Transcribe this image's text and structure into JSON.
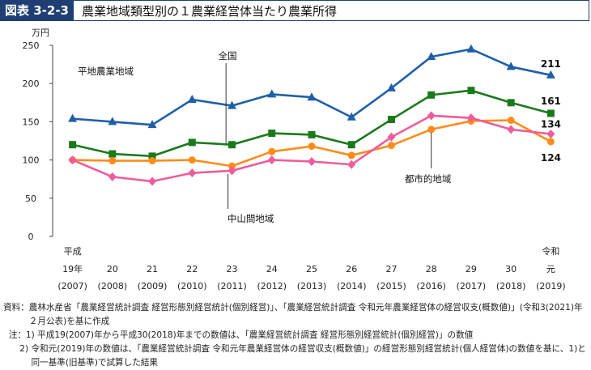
{
  "header": {
    "figure_label": "図表 3-2-3",
    "title": "農業地域類型別の１農業経営体当たり農業所得"
  },
  "chart_data": {
    "type": "line",
    "y_unit": "万円",
    "ylim": [
      0,
      250
    ],
    "yticks": [
      0,
      50,
      100,
      150,
      200,
      250
    ],
    "grid": false,
    "legend": "none",
    "categories": [
      {
        "era": "平成",
        "year": "19年",
        "western": "(2007)"
      },
      {
        "era": "",
        "year": "20",
        "western": "(2008)"
      },
      {
        "era": "",
        "year": "21",
        "western": "(2009)"
      },
      {
        "era": "",
        "year": "22",
        "western": "(2010)"
      },
      {
        "era": "",
        "year": "23",
        "western": "(2011)"
      },
      {
        "era": "",
        "year": "24",
        "western": "(2012)"
      },
      {
        "era": "",
        "year": "25",
        "western": "(2013)"
      },
      {
        "era": "",
        "year": "26",
        "western": "(2014)"
      },
      {
        "era": "",
        "year": "27",
        "western": "(2015)"
      },
      {
        "era": "",
        "year": "28",
        "western": "(2016)"
      },
      {
        "era": "",
        "year": "29",
        "western": "(2017)"
      },
      {
        "era": "",
        "year": "30",
        "western": "(2018)"
      },
      {
        "era": "令和",
        "year": "元",
        "western": "(2019)"
      }
    ],
    "series": [
      {
        "name": "平地農業地域",
        "color": "#1f5fa8",
        "marker": "triangle",
        "values": [
          154,
          150,
          146,
          179,
          171,
          186,
          182,
          156,
          194,
          235,
          245,
          222,
          211
        ],
        "end_label": "211"
      },
      {
        "name": "全国",
        "color": "#1a7a1a",
        "marker": "square",
        "values": [
          120,
          108,
          105,
          123,
          120,
          135,
          133,
          120,
          153,
          185,
          191,
          175,
          161
        ],
        "end_label": "161"
      },
      {
        "name": "都市的地域",
        "color": "#ff8c1a",
        "marker": "circle",
        "values": [
          100,
          99,
          99,
          100,
          92,
          111,
          118,
          106,
          119,
          140,
          151,
          152,
          124
        ],
        "end_label": "124"
      },
      {
        "name": "中山間地域",
        "color": "#ee5c9c",
        "marker": "diamond",
        "values": [
          100,
          78,
          72,
          83,
          86,
          100,
          98,
          94,
          130,
          158,
          155,
          140,
          134
        ],
        "end_label": "134"
      }
    ]
  },
  "notes": [
    {
      "label": "資料：",
      "text": "農林水産省「農業経営統計調査 経営形態別経営統計(個別経営)」、「農業経営統計調査 令和元年農業経営体の経営収支(概数値)」(令和3(2021)年２月公表)を基に作成"
    },
    {
      "label": "  注：1) ",
      "text": "平成19(2007)年から平成30(2018)年までの数値は、「農業経営統計調査 経営形態別経営統計(個別経営)」の数値"
    },
    {
      "label": "      2) ",
      "text": "令和元(2019)年の数値は、「農業経営統計調査 令和元年農業経営体の経営収支(概数値)」の経営形態別経営統計(個人経営体)の数値を基に、1)と同一基準(旧基準)で試算した結果"
    }
  ]
}
